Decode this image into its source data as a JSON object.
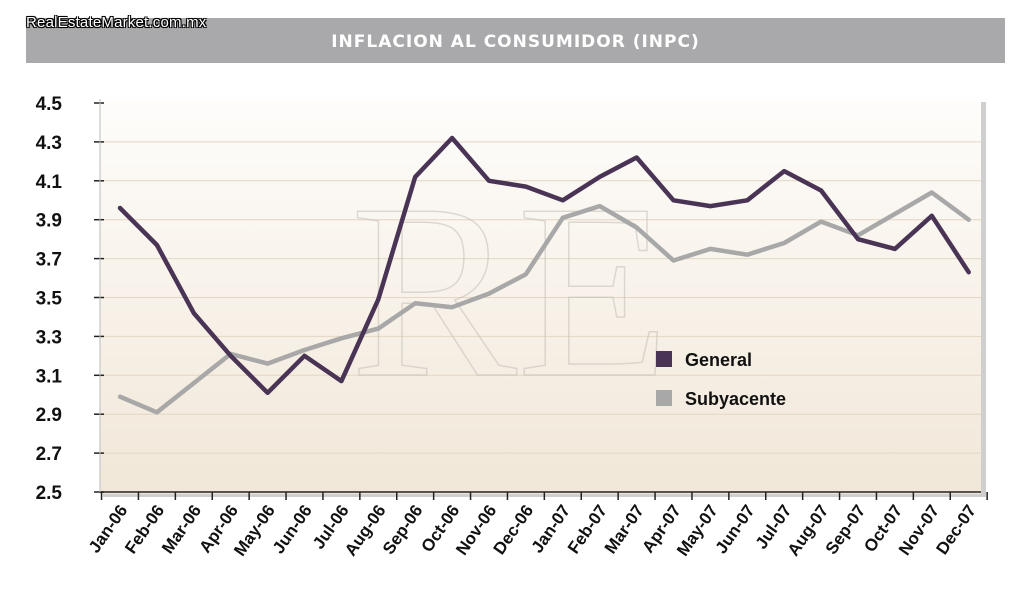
{
  "header": {
    "site_watermark": "RealEstateMarket.com.mx",
    "title": "INFLACION AL CONSUMIDOR (INPC)"
  },
  "logo_watermark": "RE",
  "colors": {
    "general": "#4a3455",
    "subyacente": "#a8a8a8",
    "title_bar": "#a9a8aa"
  },
  "chart_data": {
    "type": "line",
    "title": "INFLACION AL CONSUMIDOR (INPC)",
    "xlabel": "",
    "ylabel": "",
    "categories": [
      "Jan-06",
      "Feb-06",
      "Mar-06",
      "Apr-06",
      "May-06",
      "Jun-06",
      "Jul-06",
      "Aug-06",
      "Sep-06",
      "Oct-06",
      "Nov-06",
      "Dec-06",
      "Jan-07",
      "Feb-07",
      "Mar-07",
      "Apr-07",
      "May-07",
      "Jun-07",
      "Jul-07",
      "Aug-07",
      "Sep-07",
      "Oct-07",
      "Nov-07",
      "Dec-07"
    ],
    "yticks": [
      "4.5",
      "4.3",
      "4.1",
      "3.9",
      "3.7",
      "3.5",
      "3.3",
      "3.1",
      "2.9",
      "2.7",
      "2.5"
    ],
    "ylim": [
      2.5,
      4.5
    ],
    "grid": true,
    "legend_position": "center-right",
    "series": [
      {
        "name": "General",
        "color": "#4a3455",
        "values": [
          3.96,
          3.77,
          3.42,
          3.2,
          3.01,
          3.2,
          3.07,
          3.49,
          4.12,
          4.32,
          4.1,
          4.07,
          4.0,
          4.12,
          4.22,
          4.0,
          3.97,
          4.0,
          4.15,
          4.05,
          3.8,
          3.75,
          3.92,
          3.63
        ]
      },
      {
        "name": "Subyacente",
        "color": "#a8a8a8",
        "values": [
          2.99,
          2.91,
          3.06,
          3.21,
          3.16,
          3.23,
          3.29,
          3.34,
          3.47,
          3.45,
          3.52,
          3.62,
          3.91,
          3.97,
          3.86,
          3.69,
          3.75,
          3.72,
          3.78,
          3.89,
          3.82,
          3.93,
          4.04,
          3.9
        ]
      }
    ]
  }
}
